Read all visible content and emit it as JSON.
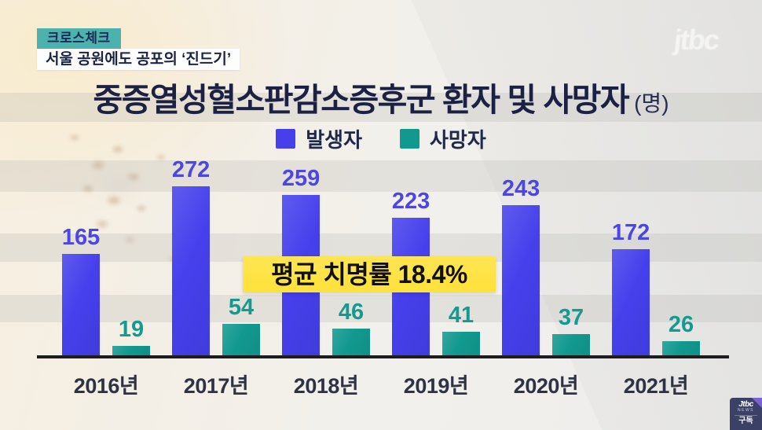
{
  "header": {
    "program_badge": "크로스체크",
    "headline": "서울 공원에도 공포의 ‘진드기’",
    "watermark": "jtbc"
  },
  "chart_data": {
    "type": "bar",
    "title": "중증열성혈소판감소증후군 환자 및 사망자",
    "unit_label": "(명)",
    "categories": [
      "2016년",
      "2017년",
      "2018년",
      "2019년",
      "2020년",
      "2021년"
    ],
    "series": [
      {
        "name": "발생자",
        "color": "#4540ec",
        "label_color": "#4b46e5",
        "values": [
          165,
          272,
          259,
          223,
          243,
          172
        ]
      },
      {
        "name": "사망자",
        "color": "#12998f",
        "label_color": "#149a90",
        "values": [
          19,
          54,
          46,
          41,
          37,
          26
        ]
      }
    ],
    "annotation": "평균 치명률 18.4%",
    "annotation_bg": "#ffe13a",
    "legend_position": "top",
    "ylim": [
      0,
      280
    ],
    "grid": "horizontal-bands"
  },
  "footer": {
    "channel_logo": "Jtbc",
    "channel_logo_sub": "NEWS",
    "subscribe_label": "구독"
  }
}
